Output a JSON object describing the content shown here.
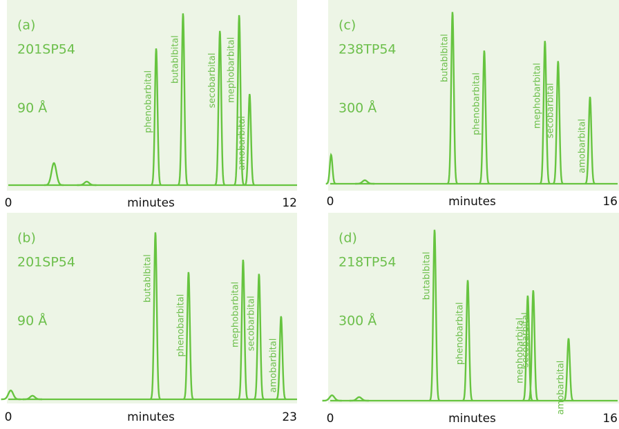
{
  "chart_data": [
    {
      "type": "line",
      "label": "(a)",
      "column": "201SP54",
      "pore": "90 Å",
      "xlabel": "minutes",
      "x": [
        1.92,
        3.3,
        6.22,
        7.35,
        8.9,
        9.71,
        10.15
      ],
      "values": [
        12.6,
        2,
        78,
        98,
        88,
        97,
        52
      ],
      "peak_names": [
        null,
        null,
        "phenobarbital",
        "butablbital",
        "secobarbital",
        "mephobarbital",
        "amobarbital"
      ],
      "xlim": [
        0,
        12
      ],
      "xticks": [
        0,
        12
      ],
      "ylim": [
        0,
        100
      ],
      "color": "#66c43f"
    },
    {
      "type": "line",
      "label": "(b)",
      "column": "201SP54",
      "pore": "90 Å",
      "xlabel": "minutes",
      "x": [
        0.2,
        1.95,
        11.86,
        14.53,
        18.93,
        20.21,
        21.99
      ],
      "values": [
        5,
        2,
        94.5,
        72,
        79,
        71,
        47
      ],
      "peak_names": [
        null,
        null,
        "butablbital",
        "phenobarbital",
        "mephobarbital",
        "secobarbital",
        "amobarbital"
      ],
      "xlim": [
        0,
        23
      ],
      "xticks": [
        0,
        23
      ],
      "ylim": [
        0,
        100
      ],
      "color": "#66c43f"
    },
    {
      "type": "line",
      "label": "(c)",
      "column": "238TP54",
      "pore": "300 Å",
      "xlabel": "minutes",
      "x": [
        0.05,
        1.95,
        6.89,
        8.68,
        12.1,
        12.84,
        14.64
      ],
      "values": [
        16.5,
        2,
        98,
        76,
        81.5,
        70,
        49.6
      ],
      "peak_names": [
        null,
        null,
        "butablbital",
        "phenobarbital",
        "mephobarbital",
        "secobarbital",
        "amobarbital"
      ],
      "xlim": [
        0,
        16
      ],
      "xticks": [
        0,
        16
      ],
      "ylim": [
        0,
        100
      ],
      "color": "#66c43f"
    },
    {
      "type": "line",
      "label": "(d)",
      "column": "218TP54",
      "pore": "300 Å",
      "xlabel": "minutes",
      "x": [
        0.1,
        1.63,
        5.88,
        7.75,
        11.13,
        11.44,
        13.43
      ],
      "values": [
        3,
        2,
        96,
        67.7,
        59,
        62,
        35
      ],
      "peak_names": [
        null,
        null,
        "butablbital",
        "phenobarbital",
        "mephobarbital",
        "secobarbital",
        "amobarbital"
      ],
      "xlim": [
        0,
        16
      ],
      "xticks": [
        0,
        16
      ],
      "ylim": [
        0,
        100
      ],
      "color": "#66c43f"
    }
  ]
}
